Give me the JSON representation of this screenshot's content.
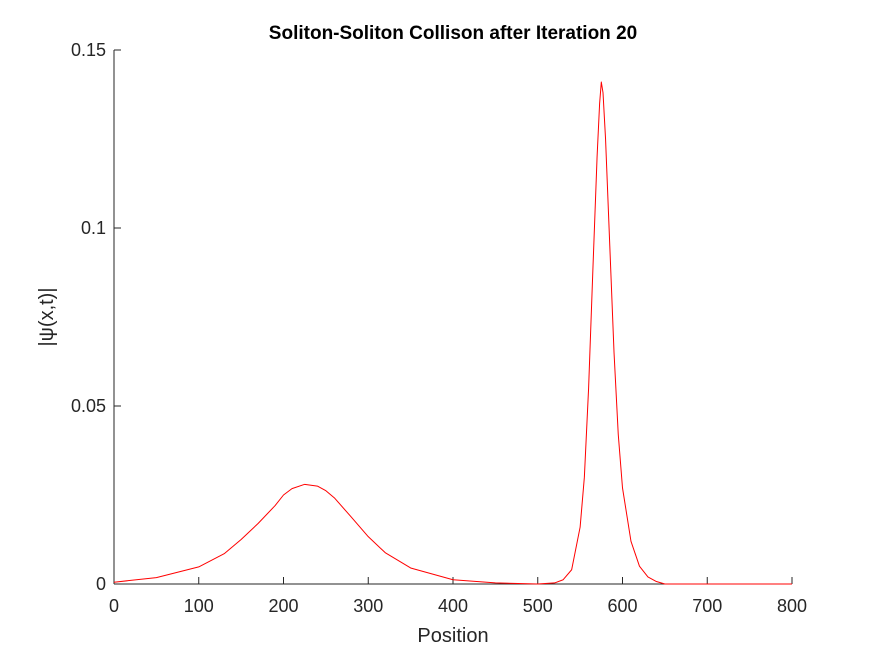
{
  "chart_data": {
    "type": "line",
    "title": "Soliton-Soliton Collison after Iteration 20",
    "xlabel": "Position",
    "ylabel": "|ψ(x,t)|",
    "xlim": [
      0,
      800
    ],
    "ylim": [
      0,
      0.15
    ],
    "xticks": [
      0,
      100,
      200,
      300,
      400,
      500,
      600,
      700,
      800
    ],
    "xticklabels": [
      "0",
      "100",
      "200",
      "300",
      "400",
      "500",
      "600",
      "700",
      "800"
    ],
    "yticks": [
      0,
      0.05,
      0.1,
      0.15
    ],
    "yticklabels": [
      "0",
      "0.05",
      "0.1",
      "0.15"
    ],
    "grid": false,
    "series": [
      {
        "color": "#ff0000",
        "x": [
          0,
          50,
          100,
          130,
          150,
          170,
          190,
          200,
          210,
          225,
          240,
          250,
          260,
          280,
          300,
          320,
          350,
          400,
          450,
          500,
          520,
          530,
          540,
          550,
          555,
          560,
          565,
          570,
          573,
          575,
          577,
          580,
          585,
          590,
          595,
          600,
          610,
          620,
          630,
          640,
          650,
          700,
          800
        ],
        "y": [
          0.0005,
          0.0018,
          0.0048,
          0.0085,
          0.0125,
          0.017,
          0.022,
          0.025,
          0.0268,
          0.028,
          0.0275,
          0.0262,
          0.0242,
          0.0188,
          0.0133,
          0.0088,
          0.0045,
          0.0012,
          0.0003,
          0.0,
          0.0003,
          0.0012,
          0.004,
          0.016,
          0.03,
          0.055,
          0.088,
          0.12,
          0.135,
          0.141,
          0.138,
          0.125,
          0.095,
          0.065,
          0.042,
          0.027,
          0.012,
          0.005,
          0.002,
          0.0007,
          0.0,
          0.0,
          0.0
        ]
      }
    ]
  }
}
